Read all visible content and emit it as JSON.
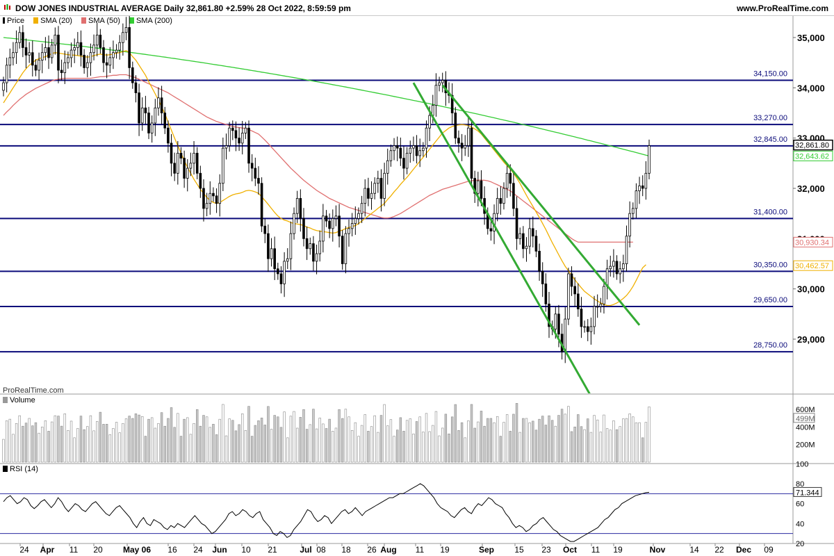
{
  "header": {
    "title": "DOW JONES INDUSTRIAL AVERAGE Daily 32,861.80 +2.59% 28 Oct 2022, 8:59:59 pm",
    "site": "www.ProRealTime.com"
  },
  "legend": {
    "items": [
      {
        "label": "Price",
        "color": "#000000"
      },
      {
        "label": "SMA (20)",
        "color": "#f0b000"
      },
      {
        "label": "SMA (50)",
        "color": "#e07070"
      },
      {
        "label": "SMA (200)",
        "color": "#33cc33"
      }
    ]
  },
  "watermark": "ProRealTime.com",
  "volume_panel": {
    "label": "Volume",
    "ticks": [
      "600M",
      "400M",
      "200M"
    ],
    "last_value_label": "499M"
  },
  "rsi_panel": {
    "label": "RSI (14)",
    "ticks": [
      "100",
      "80",
      "60",
      "40",
      "20"
    ],
    "last_value_label": "71.344"
  },
  "x_axis_labels": [
    "24",
    "Apr",
    "11",
    "20",
    "May 06",
    "16",
    "24",
    "Jun",
    "10",
    "21",
    "Jul",
    "08",
    "18",
    "26",
    "Aug",
    "11",
    "19",
    "Sep",
    "15",
    "23",
    "Oct",
    "11",
    "19",
    "Nov",
    "14",
    "22",
    "Dec",
    "09"
  ],
  "chart_data": {
    "type": "candlestick",
    "y_ticks": [
      "35,000",
      "34,000",
      "33,000",
      "32,000",
      "31,000",
      "30,000",
      "29,000"
    ],
    "ylim": [
      27800,
      35500
    ],
    "horizontal_levels": [
      {
        "value": 34150,
        "label": "34,150.00"
      },
      {
        "value": 33270,
        "label": "33,270.00"
      },
      {
        "value": 32845,
        "label": "32,845.00"
      },
      {
        "value": 31400,
        "label": "31,400.00"
      },
      {
        "value": 30350,
        "label": "30,350.00"
      },
      {
        "value": 29650,
        "label": "29,650.00"
      },
      {
        "value": 28750,
        "label": "28,750.00"
      }
    ],
    "price_tags": [
      {
        "label": "32,861.80",
        "value": 32861.8,
        "style": "price",
        "color": "#000000"
      },
      {
        "label": "32,643.62",
        "value": 32643.62,
        "style": "sma200",
        "color": "#33cc33"
      },
      {
        "label": "30,930.34",
        "value": 30930.34,
        "style": "sma50",
        "color": "#e07070"
      },
      {
        "label": "30,462.57",
        "value": 30462.57,
        "style": "sma20",
        "color": "#f0b000"
      }
    ],
    "closes": [
      34100,
      34450,
      34600,
      34700,
      34900,
      35100,
      34800,
      34650,
      34700,
      34450,
      34350,
      34550,
      34700,
      34800,
      34600,
      34850,
      35050,
      34350,
      34300,
      34500,
      34600,
      34750,
      34800,
      34900,
      34650,
      34400,
      34500,
      34700,
      34850,
      35050,
      34800,
      34500,
      34450,
      34600,
      34700,
      34750,
      34900,
      35100,
      35200,
      34400,
      34100,
      33900,
      33300,
      33600,
      33500,
      33100,
      33300,
      33600,
      33800,
      33500,
      33200,
      32900,
      32500,
      32300,
      32700,
      32600,
      32200,
      32400,
      32500,
      32700,
      32300,
      32000,
      31600,
      31700,
      31900,
      31850,
      31700,
      32100,
      32800,
      32850,
      33200,
      33150,
      33000,
      32900,
      33100,
      33200,
      32500,
      32400,
      32200,
      32100,
      31250,
      31100,
      30600,
      30800,
      30400,
      30300,
      30100,
      30550,
      30600,
      31100,
      31500,
      31800,
      31400,
      31000,
      30800,
      30900,
      30550,
      30700,
      30950,
      31450,
      31350,
      31200,
      31400,
      31450,
      31050,
      30500,
      31100,
      31200,
      31300,
      31400,
      31500,
      31700,
      32000,
      31800,
      31900,
      32100,
      32200,
      31800,
      32300,
      32550,
      32750,
      32850,
      32800,
      32600,
      32400,
      32700,
      32800,
      32850,
      32650,
      32750,
      32800,
      33200,
      33450,
      33650,
      34050,
      34100,
      34150,
      33900,
      33850,
      33500,
      33000,
      32900,
      32800,
      32850,
      33200,
      32200,
      31900,
      32150,
      31800,
      31500,
      31200,
      31150,
      31500,
      31800,
      31700,
      32000,
      32300,
      32100,
      31600,
      31000,
      31100,
      30800,
      30850,
      31200,
      31050,
      30750,
      30350,
      30100,
      29700,
      29250,
      29200,
      29500,
      29100,
      28750,
      29400,
      30300,
      30050,
      29900,
      29600,
      29250,
      29250,
      29150,
      29250,
      29650,
      29650,
      29700,
      30050,
      30400,
      30450,
      30550,
      30300,
      30400,
      30500,
      31050,
      31500,
      31600,
      31950,
      32050,
      32000,
      32300,
      32850
    ],
    "sma20": [
      33700,
      33800,
      33900,
      34000,
      34100,
      34200,
      34300,
      34380,
      34450,
      34500,
      34550,
      34580,
      34600,
      34620,
      34650,
      34680,
      34700,
      34690,
      34680,
      34670,
      34660,
      34650,
      34650,
      34640,
      34630,
      34620,
      34610,
      34620,
      34640,
      34660,
      34670,
      34660,
      34650,
      34660,
      34670,
      34690,
      34700,
      34720,
      34740,
      34700,
      34620,
      34550,
      34450,
      34350,
      34250,
      34120,
      34000,
      33880,
      33750,
      33620,
      33480,
      33320,
      33160,
      33000,
      32850,
      32700,
      32550,
      32420,
      32300,
      32180,
      32080,
      31980,
      31900,
      31820,
      31760,
      31720,
      31700,
      31720,
      31760,
      31800,
      31840,
      31870,
      31890,
      31900,
      31920,
      31950,
      31960,
      31950,
      31930,
      31900,
      31830,
      31760,
      31680,
      31600,
      31520,
      31450,
      31400,
      31370,
      31350,
      31320,
      31300,
      31290,
      31280,
      31260,
      31230,
      31210,
      31180,
      31160,
      31150,
      31140,
      31130,
      31120,
      31110,
      31120,
      31150,
      31170,
      31200,
      31220,
      31240,
      31260,
      31300,
      31350,
      31400,
      31450,
      31500,
      31550,
      31600,
      31650,
      31700,
      31780,
      31850,
      31930,
      32000,
      32080,
      32150,
      32220,
      32300,
      32380,
      32460,
      32540,
      32620,
      32700,
      32780,
      32860,
      32940,
      33020,
      33100,
      33150,
      33200,
      33230,
      33250,
      33260,
      33270,
      33260,
      33250,
      33220,
      33180,
      33140,
      33080,
      33000,
      32920,
      32840,
      32760,
      32680,
      32600,
      32520,
      32450,
      32380,
      32300,
      32200,
      32100,
      31980,
      31860,
      31750,
      31640,
      31530,
      31420,
      31300,
      31180,
      31050,
      30920,
      30800,
      30680,
      30560,
      30450,
      30360,
      30270,
      30180,
      30100,
      30020,
      29950,
      29900,
      29850,
      29800,
      29760,
      29720,
      29690,
      29670,
      29670,
      29690,
      29720,
      29760,
      29810,
      29870,
      29950,
      30050,
      30170,
      30300,
      30420,
      30480
    ],
    "sma50": [
      33450,
      33520,
      33580,
      33650,
      33710,
      33770,
      33820,
      33870,
      33910,
      33950,
      33990,
      34020,
      34050,
      34080,
      34110,
      34140,
      34160,
      34170,
      34180,
      34190,
      34190,
      34190,
      34190,
      34190,
      34190,
      34190,
      34190,
      34190,
      34200,
      34210,
      34220,
      34220,
      34230,
      34240,
      34250,
      34250,
      34260,
      34260,
      34260,
      34240,
      34220,
      34200,
      34170,
      34140,
      34110,
      34080,
      34050,
      34020,
      33990,
      33960,
      33930,
      33900,
      33860,
      33820,
      33780,
      33740,
      33700,
      33660,
      33620,
      33580,
      33540,
      33500,
      33460,
      33420,
      33390,
      33360,
      33330,
      33310,
      33290,
      33270,
      33250,
      33230,
      33220,
      33210,
      33200,
      33190,
      33170,
      33140,
      33110,
      33080,
      33020,
      32960,
      32890,
      32820,
      32750,
      32680,
      32610,
      32540,
      32470,
      32400,
      32340,
      32280,
      32220,
      32160,
      32110,
      32060,
      32010,
      31960,
      31920,
      31880,
      31840,
      31800,
      31770,
      31740,
      31710,
      31680,
      31650,
      31620,
      31600,
      31580,
      31560,
      31540,
      31520,
      31500,
      31480,
      31460,
      31440,
      31420,
      31410,
      31410,
      31420,
      31440,
      31470,
      31500,
      31540,
      31580,
      31620,
      31660,
      31700,
      31740,
      31780,
      31820,
      31860,
      31890,
      31920,
      31950,
      31980,
      32000,
      32020,
      32040,
      32060,
      32080,
      32100,
      32120,
      32140,
      32150,
      32160,
      32165,
      32165,
      32160,
      32150,
      32130,
      32100,
      32070,
      32040,
      32010,
      31980,
      31950,
      31900,
      31850,
      31800,
      31750,
      31700,
      31650,
      31600,
      31550,
      31500,
      31450,
      31400,
      31350,
      31300,
      31250,
      31200,
      31150,
      31100,
      31050,
      31000,
      30960,
      30930,
      30930,
      30930,
      30930,
      30930,
      30930,
      30930,
      30930,
      30930,
      30930,
      30930,
      30930,
      30930,
      30930,
      30930,
      30930,
      30930,
      30930
    ],
    "sma200_start": 35000,
    "sma200_end": 32643.62,
    "trendlines": [
      {
        "from": [
          127,
          34100
        ],
        "to": [
          183,
          27750
        ]
      },
      {
        "from": [
          136,
          34050
        ],
        "to": [
          197,
          29280
        ]
      }
    ],
    "rsi": [
      62,
      66,
      68,
      64,
      60,
      62,
      66,
      64,
      58,
      55,
      58,
      62,
      64,
      60,
      56,
      60,
      66,
      62,
      56,
      52,
      56,
      60,
      58,
      54,
      52,
      56,
      60,
      62,
      58,
      54,
      50,
      48,
      52,
      56,
      58,
      54,
      50,
      46,
      40,
      36,
      42,
      46,
      40,
      38,
      44,
      42,
      40,
      36,
      34,
      38,
      36,
      40,
      38,
      36,
      40,
      44,
      48,
      44,
      40,
      38,
      34,
      30,
      32,
      36,
      40,
      44,
      50,
      52,
      48,
      50,
      54,
      52,
      48,
      46,
      50,
      52,
      44,
      40,
      36,
      30,
      28,
      32,
      30,
      26,
      28,
      34,
      38,
      42,
      48,
      54,
      52,
      46,
      42,
      44,
      48,
      46,
      40,
      44,
      48,
      52,
      54,
      50,
      52,
      56,
      52,
      48,
      52,
      54,
      56,
      58,
      60,
      62,
      64,
      66,
      66,
      68,
      70,
      70,
      72,
      74,
      76,
      78,
      80,
      78,
      74,
      70,
      66,
      60,
      56,
      54,
      52,
      48,
      46,
      50,
      54,
      56,
      52,
      50,
      56,
      60,
      58,
      62,
      66,
      64,
      60,
      58,
      56,
      50,
      46,
      40,
      36,
      38,
      36,
      32,
      34,
      38,
      40,
      44,
      46,
      42,
      38,
      34,
      32,
      28,
      26,
      24,
      22,
      22,
      24,
      26,
      28,
      30,
      32,
      34,
      36,
      40,
      44,
      46,
      50,
      54,
      56,
      60,
      62,
      64,
      66,
      68,
      69,
      70,
      71,
      71.344
    ],
    "rsi_levels": [
      70,
      30
    ]
  }
}
